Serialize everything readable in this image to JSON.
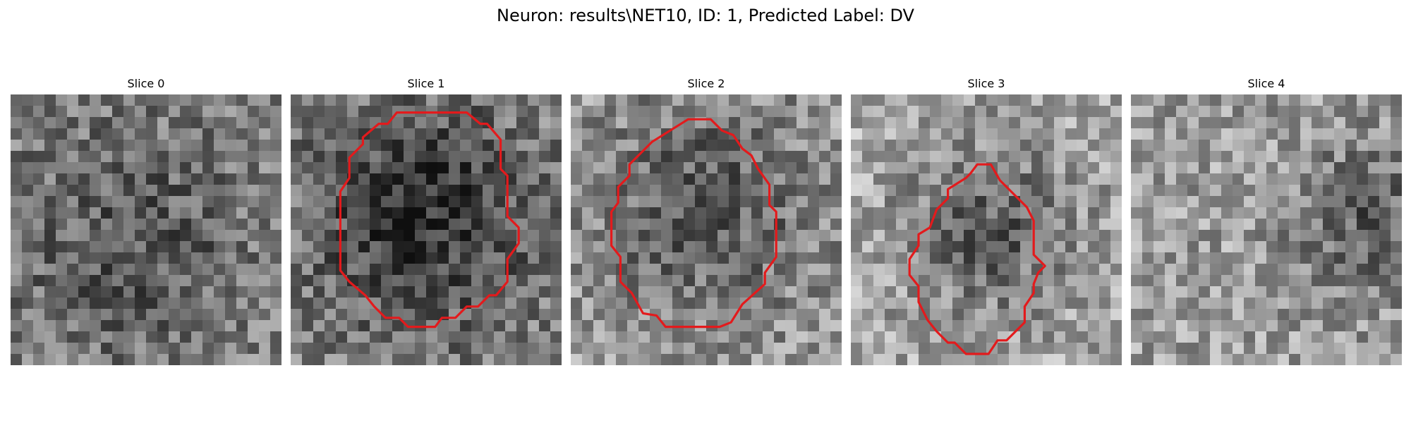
{
  "title": "Neuron: results\\NET10, ID: 1, Predicted Label: DV",
  "colors": {
    "contour": "#e31a1c",
    "background": "#ffffff"
  },
  "slices": [
    {
      "label": "Slice 0",
      "has_contour": false,
      "seed": 11,
      "dark_center": [
        0.45,
        0.55
      ],
      "dark_strength": 0.18,
      "dark_radius": 0.32,
      "base": 0.52
    },
    {
      "label": "Slice 1",
      "has_contour": true,
      "seed": 27,
      "dark_center": [
        0.48,
        0.45
      ],
      "dark_strength": 0.35,
      "dark_radius": 0.28,
      "base": 0.52,
      "contour_points": [
        [
          11.8,
          1.6
        ],
        [
          15.6,
          1.6
        ],
        [
          16.8,
          2.6
        ],
        [
          17.4,
          2.6
        ],
        [
          18.6,
          4.0
        ],
        [
          18.6,
          6.6
        ],
        [
          19.2,
          7.2
        ],
        [
          19.2,
          10.8
        ],
        [
          20.2,
          11.8
        ],
        [
          20.2,
          13.2
        ],
        [
          19.2,
          14.6
        ],
        [
          19.2,
          16.6
        ],
        [
          18.2,
          17.8
        ],
        [
          17.6,
          17.8
        ],
        [
          16.6,
          18.8
        ],
        [
          15.6,
          18.8
        ],
        [
          14.6,
          19.8
        ],
        [
          13.4,
          19.8
        ],
        [
          12.8,
          20.6
        ],
        [
          10.4,
          20.6
        ],
        [
          9.6,
          19.8
        ],
        [
          8.4,
          19.8
        ],
        [
          7.4,
          18.8
        ],
        [
          6.6,
          17.8
        ],
        [
          5.2,
          16.6
        ],
        [
          4.4,
          15.6
        ],
        [
          4.4,
          8.6
        ],
        [
          5.2,
          7.4
        ],
        [
          5.2,
          5.6
        ],
        [
          6.4,
          4.4
        ],
        [
          6.4,
          3.8
        ],
        [
          7.8,
          2.6
        ],
        [
          8.6,
          2.6
        ],
        [
          9.4,
          1.6
        ]
      ]
    },
    {
      "label": "Slice 2",
      "has_contour": true,
      "seed": 41,
      "dark_center": [
        0.5,
        0.42
      ],
      "dark_strength": 0.28,
      "dark_radius": 0.3,
      "base": 0.62,
      "contour_points": [
        [
          8.8,
          3.2
        ],
        [
          10.4,
          2.2
        ],
        [
          12.4,
          2.2
        ],
        [
          13.4,
          3.2
        ],
        [
          14.4,
          3.6
        ],
        [
          15.2,
          4.8
        ],
        [
          16.0,
          5.4
        ],
        [
          16.6,
          6.6
        ],
        [
          17.6,
          8.0
        ],
        [
          17.6,
          9.8
        ],
        [
          18.2,
          10.4
        ],
        [
          18.2,
          14.4
        ],
        [
          17.2,
          15.8
        ],
        [
          17.2,
          16.8
        ],
        [
          15.2,
          18.6
        ],
        [
          14.2,
          20.2
        ],
        [
          13.2,
          20.6
        ],
        [
          9.8,
          20.6
        ],
        [
          8.4,
          20.6
        ],
        [
          7.6,
          19.6
        ],
        [
          6.4,
          19.4
        ],
        [
          5.4,
          17.6
        ],
        [
          4.4,
          16.6
        ],
        [
          4.4,
          14.4
        ],
        [
          3.6,
          13.4
        ],
        [
          3.6,
          10.4
        ],
        [
          4.2,
          9.6
        ],
        [
          4.2,
          8.2
        ],
        [
          5.2,
          7.2
        ],
        [
          5.2,
          6.2
        ],
        [
          6.2,
          5.2
        ],
        [
          7.2,
          4.2
        ]
      ]
    },
    {
      "label": "Slice 3",
      "has_contour": true,
      "seed": 53,
      "dark_center": [
        0.52,
        0.5
      ],
      "dark_strength": 0.3,
      "dark_radius": 0.22,
      "base": 0.66,
      "contour_points": [
        [
          11.2,
          6.2
        ],
        [
          12.4,
          6.2
        ],
        [
          13.2,
          7.6
        ],
        [
          15.6,
          10.0
        ],
        [
          16.2,
          11.2
        ],
        [
          16.2,
          14.2
        ],
        [
          17.2,
          15.2
        ],
        [
          16.6,
          15.8
        ],
        [
          16.2,
          16.8
        ],
        [
          16.2,
          17.6
        ],
        [
          15.4,
          18.8
        ],
        [
          15.4,
          20.2
        ],
        [
          14.2,
          21.4
        ],
        [
          13.8,
          21.8
        ],
        [
          13.0,
          21.8
        ],
        [
          12.2,
          23.0
        ],
        [
          10.2,
          23.0
        ],
        [
          9.2,
          22.0
        ],
        [
          8.6,
          22.0
        ],
        [
          7.6,
          21.0
        ],
        [
          6.8,
          20.0
        ],
        [
          6.0,
          18.4
        ],
        [
          6.0,
          17.0
        ],
        [
          5.2,
          16.0
        ],
        [
          5.2,
          14.6
        ],
        [
          6.0,
          13.4
        ],
        [
          6.0,
          12.4
        ],
        [
          7.0,
          11.8
        ],
        [
          7.6,
          10.2
        ],
        [
          8.6,
          9.2
        ],
        [
          8.6,
          8.4
        ],
        [
          10.2,
          7.4
        ],
        [
          10.6,
          7.0
        ]
      ]
    },
    {
      "label": "Slice 4",
      "has_contour": false,
      "seed": 67,
      "dark_center": [
        0.88,
        0.45
      ],
      "dark_strength": 0.25,
      "dark_radius": 0.2,
      "base": 0.62
    }
  ]
}
